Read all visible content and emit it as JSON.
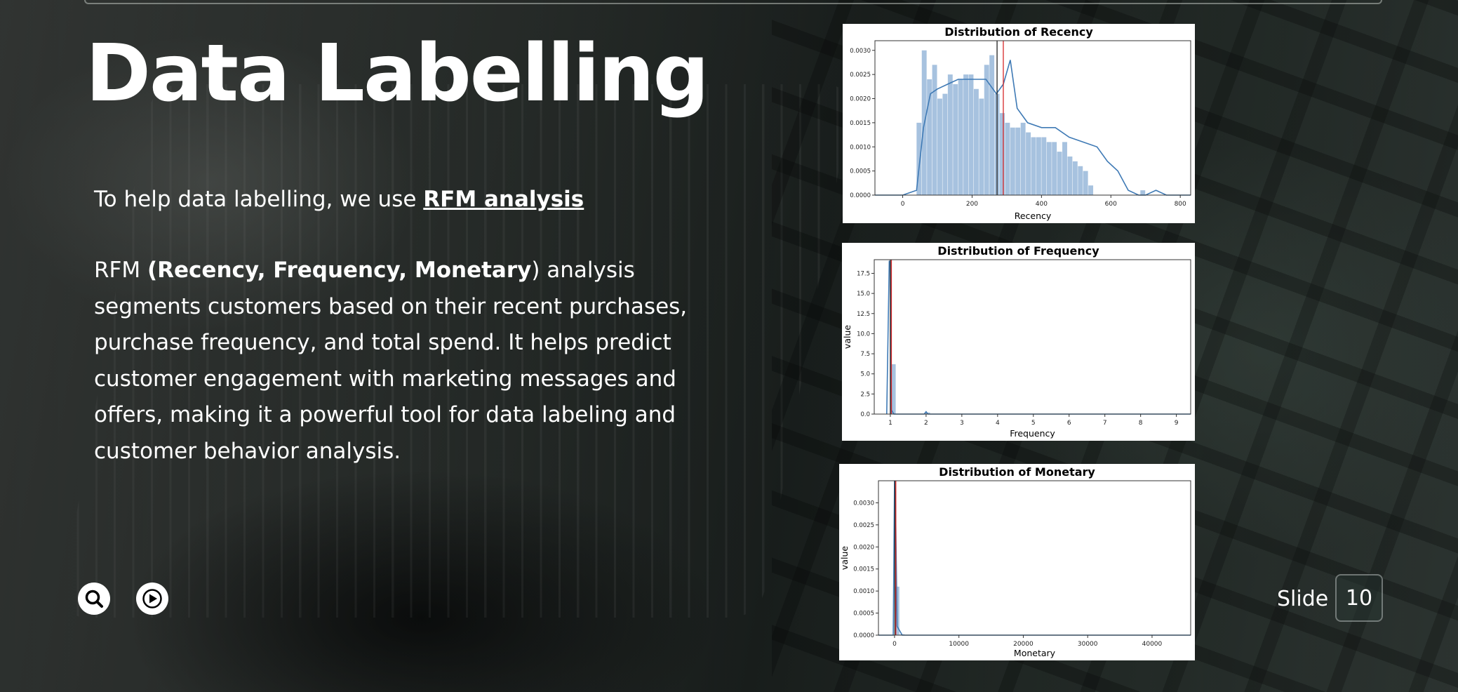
{
  "slide": {
    "title": "Data Labelling",
    "intro_prefix": "To help data labelling, we use ",
    "intro_link": "RFM analysis ",
    "body_prefix": "RFM ",
    "body_bold": "(Recency, Frequency, Monetary",
    "body_rest": ") analysis segments customers based on their recent purchases, purchase frequency, and total spend. It helps predict customer engagement with marketing messages and offers, making it a powerful tool for data labeling and customer behavior analysis.",
    "slide_label": "Slide",
    "slide_number": "10"
  },
  "controls": {
    "search_icon": "search-icon",
    "play_icon": "play-icon"
  },
  "colors": {
    "bar": "#a7c2df",
    "kde": "#3f7ab5",
    "mean": "#d62728",
    "median": "#222222"
  },
  "chart_data": [
    {
      "type": "bar",
      "title": "Distribution of Recency",
      "xlabel": "Recency",
      "ylabel": "",
      "xlim": [
        -80,
        830
      ],
      "ylim": [
        0,
        0.0032
      ],
      "xticks": [
        0,
        200,
        400,
        600,
        800
      ],
      "yticks": [
        0.0,
        0.0005,
        0.001,
        0.0015,
        0.002,
        0.0025,
        0.003
      ],
      "ytick_labels": [
        "0.0000",
        "0.0005",
        "0.0010",
        "0.0015",
        "0.0020",
        "0.0025",
        "0.0030"
      ],
      "bin_width": 15,
      "bin_start": 40,
      "values": [
        0.0015,
        0.003,
        0.0024,
        0.0027,
        0.002,
        0.0021,
        0.0025,
        0.0023,
        0.0024,
        0.0025,
        0.0025,
        0.0022,
        0.002,
        0.0027,
        0.0029,
        0.0021,
        0.0017,
        0.0015,
        0.0014,
        0.0014,
        0.0015,
        0.0013,
        0.0012,
        0.0012,
        0.0012,
        0.0011,
        0.0011,
        0.0009,
        0.0011,
        0.0008,
        0.0007,
        0.0006,
        0.0005,
        0.0002,
        0.0,
        0.0,
        0.0,
        0.0,
        0.0,
        0.0,
        0.0,
        0.0,
        0.0,
        0.0001
      ],
      "kde_x": [
        -80,
        0,
        40,
        60,
        80,
        100,
        130,
        160,
        200,
        240,
        270,
        290,
        310,
        330,
        360,
        400,
        440,
        480,
        520,
        560,
        590,
        620,
        650,
        680,
        700,
        730,
        760,
        830
      ],
      "kde_y": [
        0,
        0,
        0.0001,
        0.0014,
        0.0021,
        0.0022,
        0.0023,
        0.0024,
        0.0024,
        0.0024,
        0.0021,
        0.0023,
        0.0028,
        0.0018,
        0.0015,
        0.0014,
        0.0014,
        0.0012,
        0.0011,
        0.001,
        0.0007,
        0.0005,
        0.0001,
        0.0,
        0.0,
        0.0001,
        0.0,
        0
      ],
      "mean": 290,
      "median": 272
    },
    {
      "type": "bar",
      "title": "Distribution of Frequency",
      "xlabel": "Frequency",
      "ylabel": "value",
      "xlim": [
        0.55,
        9.4
      ],
      "ylim": [
        0,
        19.2
      ],
      "xticks": [
        1,
        2,
        3,
        4,
        5,
        6,
        7,
        8,
        9
      ],
      "yticks": [
        0.0,
        2.5,
        5.0,
        7.5,
        10.0,
        12.5,
        15.0,
        17.5
      ],
      "ytick_labels": [
        "0.0",
        "2.5",
        "5.0",
        "7.5",
        "10.0",
        "12.5",
        "15.0",
        "17.5"
      ],
      "bin_width": 0.16,
      "bin_start": 1.0,
      "values": [
        6.2,
        0.0,
        0.0,
        0.0,
        0.0,
        0.0,
        0.2
      ],
      "kde_x": [
        0.9,
        0.97,
        1.0,
        1.03,
        1.1,
        1.95,
        2.0,
        2.05,
        9.4
      ],
      "kde_y": [
        0,
        19.0,
        19.0,
        0.5,
        0,
        0,
        0.3,
        0,
        0
      ],
      "mean": 1.03,
      "median": 1.0
    },
    {
      "type": "bar",
      "title": "Distribution of Monetary",
      "xlabel": "Monetary",
      "ylabel": "value",
      "xlim": [
        -2500,
        46000
      ],
      "ylim": [
        0,
        0.0035
      ],
      "xticks": [
        0,
        10000,
        20000,
        30000,
        40000
      ],
      "yticks": [
        0.0,
        0.0005,
        0.001,
        0.0015,
        0.002,
        0.0025,
        0.003
      ],
      "ytick_labels": [
        "0.0000",
        "0.0005",
        "0.0010",
        "0.0015",
        "0.0020",
        "0.0025",
        "0.0030"
      ],
      "bin_width": 800,
      "bin_start": 0,
      "values": [
        0.0011,
        2e-05
      ],
      "kde_x": [
        -2500,
        -200,
        0,
        150,
        400,
        1200,
        46000
      ],
      "kde_y": [
        0,
        0,
        0.0035,
        0.003,
        0.0002,
        0,
        0
      ],
      "mean": 200,
      "median": 50
    }
  ]
}
